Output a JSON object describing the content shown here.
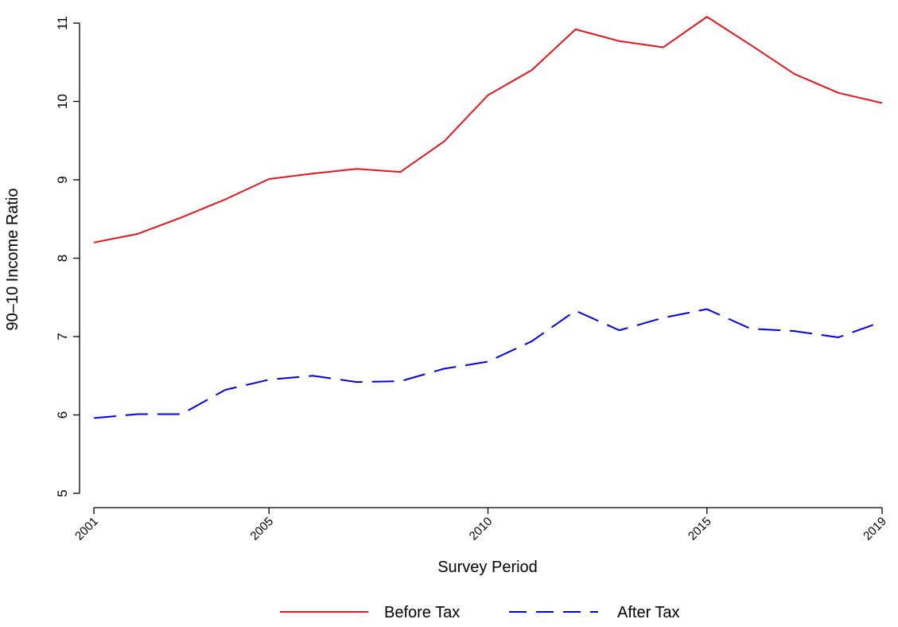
{
  "chart_data": {
    "type": "line",
    "xlabel": "Survey Period",
    "ylabel": "90–10 Income Ratio",
    "xlim": [
      2001,
      2019
    ],
    "ylim": [
      5,
      11.25
    ],
    "x_ticks": [
      2001,
      2005,
      2010,
      2015,
      2019
    ],
    "x_tick_labels": [
      "2001",
      "2005",
      "2010",
      "2015",
      "2019"
    ],
    "y_ticks": [
      5,
      6,
      7,
      8,
      9,
      10,
      11
    ],
    "y_tick_labels": [
      "5",
      "6",
      "7",
      "8",
      "9",
      "10",
      "11"
    ],
    "grid": false,
    "legend_position": "bottom",
    "x": [
      2001,
      2002,
      2003,
      2004,
      2005,
      2006,
      2007,
      2008,
      2009,
      2010,
      2011,
      2012,
      2013,
      2014,
      2015,
      2016,
      2017,
      2018,
      2019
    ],
    "series": [
      {
        "name": "Before Tax",
        "color": "#e8141b",
        "dash": "solid",
        "values": [
          8.2,
          8.31,
          8.52,
          8.75,
          9.01,
          9.08,
          9.14,
          9.1,
          9.49,
          10.08,
          10.4,
          10.92,
          10.77,
          10.69,
          11.08,
          10.72,
          10.35,
          10.11,
          9.98
        ]
      },
      {
        "name": "After Tax",
        "color": "#0000e6",
        "dash": "dashed",
        "values": [
          5.96,
          6.01,
          6.01,
          6.32,
          6.45,
          6.5,
          6.42,
          6.43,
          6.59,
          6.68,
          6.94,
          7.33,
          7.08,
          7.24,
          7.35,
          7.1,
          7.07,
          6.99,
          7.19
        ]
      }
    ]
  }
}
